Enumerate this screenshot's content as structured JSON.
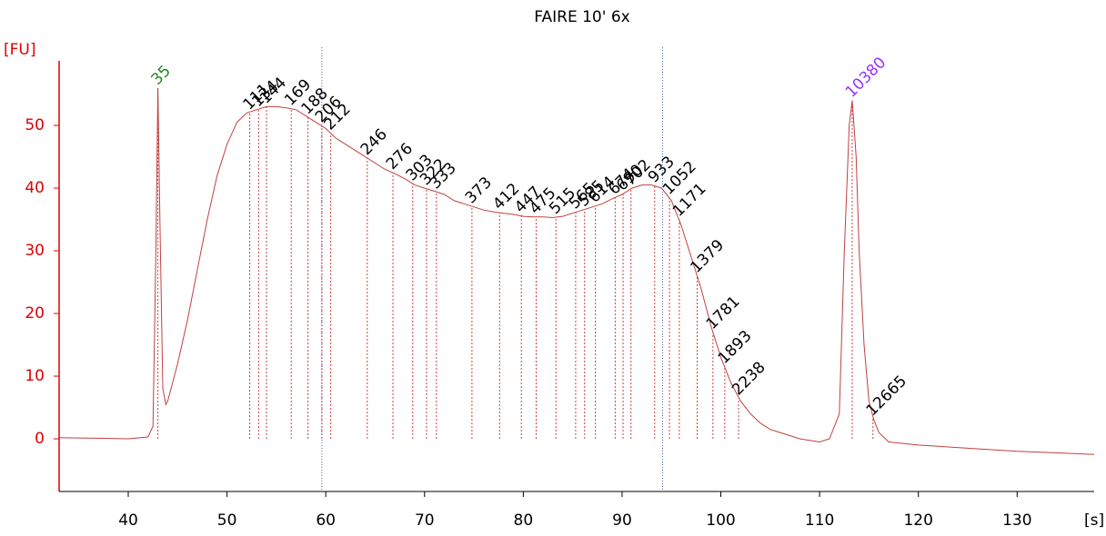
{
  "chart_data": {
    "type": "line",
    "title": "FAIRE 10' 6x",
    "x_label": "[s]",
    "y_label": "[FU]",
    "xlim": [
      33,
      137.8
    ],
    "ylim": [
      -8.4,
      60.3
    ],
    "xticks": [
      40,
      50,
      60,
      70,
      80,
      90,
      100,
      110,
      120,
      130
    ],
    "yticks": [
      0,
      10,
      20,
      30,
      40,
      50
    ],
    "x": [
      33,
      40,
      42,
      42.5,
      42.8,
      43.0,
      43.2,
      43.5,
      43.8,
      44,
      45,
      46,
      47,
      48,
      49,
      50,
      51,
      52,
      53,
      54,
      55,
      56,
      57,
      58,
      59,
      60,
      61,
      62,
      63,
      64,
      65,
      66,
      67,
      68,
      69,
      70,
      71,
      72,
      73,
      74,
      75,
      76,
      77,
      78,
      79,
      80,
      81,
      82,
      83,
      84,
      85,
      86,
      87,
      88,
      89,
      90,
      91,
      92,
      93,
      94,
      95,
      96,
      97,
      98,
      99,
      100,
      101,
      102,
      103,
      104,
      105,
      106,
      108,
      110,
      111,
      112,
      112.5,
      113,
      113.3,
      113.7,
      114,
      114.5,
      115,
      115.5,
      116,
      117,
      120,
      125,
      130,
      135,
      137.8
    ],
    "series": [
      {
        "color": "#c04040",
        "values": [
          0.2,
          0,
          0.3,
          2,
          30,
          56,
          35,
          8,
          5.5,
          6,
          12,
          19,
          27,
          35,
          42,
          47,
          50.5,
          52,
          52.5,
          53,
          53,
          52.8,
          52.5,
          51.5,
          50.5,
          49.5,
          48,
          47,
          46,
          45,
          44,
          43,
          42.3,
          41.5,
          40.5,
          40,
          39.5,
          39,
          38,
          37.5,
          37,
          36.5,
          36.2,
          36,
          35.8,
          35.5,
          35.4,
          35.4,
          35.3,
          35.5,
          36,
          36.5,
          37,
          37.5,
          38.3,
          39,
          40,
          40.5,
          40.5,
          40,
          38,
          34,
          29,
          24,
          18,
          13,
          9,
          6,
          4,
          2.5,
          1.5,
          1,
          0,
          -0.5,
          0,
          4,
          30,
          50,
          54,
          45,
          30,
          15,
          6,
          3,
          1,
          -0.5,
          -1,
          -1.5,
          -2,
          -2.3,
          -2.5
        ]
      }
    ],
    "markers": [
      59.6,
      94.1
    ],
    "peaks": [
      {
        "label": "35",
        "x": 43.0,
        "y": 56,
        "color": "#228822"
      },
      {
        "label": "111",
        "x": 52.3,
        "y": 52
      },
      {
        "label": "134",
        "x": 53.2,
        "y": 52.5
      },
      {
        "label": "144",
        "x": 54.0,
        "y": 53
      },
      {
        "label": "169",
        "x": 56.5,
        "y": 52.7
      },
      {
        "label": "188",
        "x": 58.2,
        "y": 51.3
      },
      {
        "label": "206",
        "x": 59.6,
        "y": 50
      },
      {
        "label": "212",
        "x": 60.5,
        "y": 48.8
      },
      {
        "label": "246",
        "x": 64.2,
        "y": 44.8
      },
      {
        "label": "276",
        "x": 66.8,
        "y": 42.5
      },
      {
        "label": "303",
        "x": 68.8,
        "y": 40.7
      },
      {
        "label": "322",
        "x": 70.2,
        "y": 40
      },
      {
        "label": "333",
        "x": 71.2,
        "y": 39.4
      },
      {
        "label": "373",
        "x": 74.8,
        "y": 37.1
      },
      {
        "label": "412",
        "x": 77.6,
        "y": 36.1
      },
      {
        "label": "447",
        "x": 79.8,
        "y": 35.6
      },
      {
        "label": "475",
        "x": 81.3,
        "y": 35.4
      },
      {
        "label": "515",
        "x": 83.3,
        "y": 35.4
      },
      {
        "label": "565",
        "x": 85.3,
        "y": 36.2
      },
      {
        "label": "585",
        "x": 86.2,
        "y": 36.6
      },
      {
        "label": "614",
        "x": 87.3,
        "y": 37.2
      },
      {
        "label": "674",
        "x": 89.3,
        "y": 38.5
      },
      {
        "label": "690",
        "x": 90.1,
        "y": 39.1
      },
      {
        "label": "702",
        "x": 90.9,
        "y": 39.9
      },
      {
        "label": "933",
        "x": 93.3,
        "y": 40.4
      },
      {
        "label": "1052",
        "x": 94.8,
        "y": 38.5
      },
      {
        "label": "1171",
        "x": 95.8,
        "y": 35
      },
      {
        "label": "1379",
        "x": 97.6,
        "y": 26
      },
      {
        "label": "1781",
        "x": 99.2,
        "y": 17
      },
      {
        "label": "1893",
        "x": 100.4,
        "y": 11.5
      },
      {
        "label": "2238",
        "x": 101.8,
        "y": 6.5
      },
      {
        "label": "10380",
        "x": 113.3,
        "y": 54,
        "color": "#9933ff"
      },
      {
        "label": "12665",
        "x": 115.4,
        "y": 3.2
      }
    ]
  }
}
